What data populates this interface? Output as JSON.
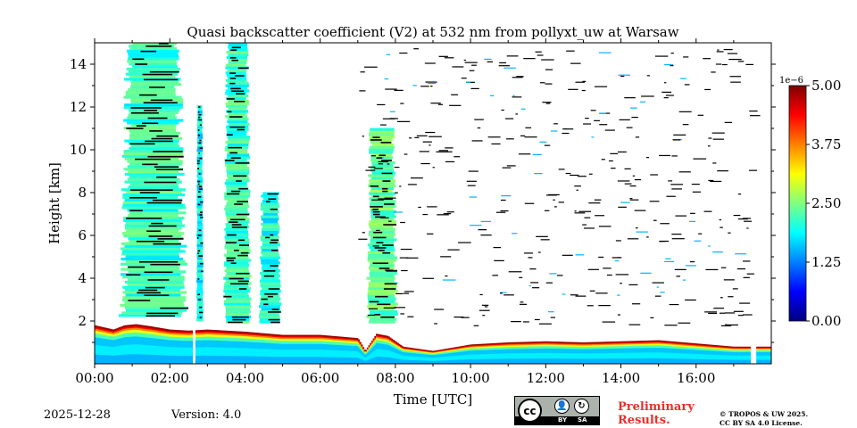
{
  "chart_data": {
    "type": "heatmap",
    "title": "Quasi backscatter coefficient (V2) at 532 nm from pollyxt_uw at Warsaw",
    "xlabel": "Time [UTC]",
    "ylabel": "Height [km]",
    "xlim": [
      0,
      18
    ],
    "ylim": [
      0,
      15
    ],
    "x_ticks": [
      0,
      2,
      4,
      6,
      8,
      10,
      12,
      14,
      16
    ],
    "x_tick_labels": [
      "00:00",
      "02:00",
      "04:00",
      "06:00",
      "08:00",
      "10:00",
      "12:00",
      "14:00",
      "16:00"
    ],
    "y_ticks": [
      2,
      4,
      6,
      8,
      10,
      12,
      14
    ],
    "y_tick_labels": [
      "2",
      "4",
      "6",
      "8",
      "10",
      "12",
      "14"
    ],
    "colorbar": {
      "min": 0.0,
      "max": 5.0,
      "scale_label": "1e−6",
      "ticks": [
        0.0,
        1.25,
        2.5,
        3.75,
        5.0
      ],
      "tick_labels": [
        "0.00",
        "1.25",
        "2.50",
        "3.75",
        "5.00"
      ],
      "colormap": "jet"
    },
    "boundary_layer_top_km": {
      "times_h": [
        0,
        0.5,
        0.8,
        1.1,
        1.5,
        2.0,
        2.5,
        3.0,
        4.0,
        5.0,
        6.0,
        7.0,
        7.2,
        7.5,
        7.8,
        8.2,
        9.0,
        10.0,
        11.0,
        12.0,
        13.0,
        14.0,
        15.0,
        16.0,
        17.0,
        18.0
      ],
      "heights_km": [
        1.8,
        1.6,
        1.8,
        1.85,
        1.75,
        1.6,
        1.55,
        1.6,
        1.5,
        1.35,
        1.35,
        1.2,
        0.6,
        1.4,
        1.3,
        0.8,
        0.6,
        0.9,
        1.0,
        1.05,
        1.0,
        1.05,
        1.1,
        0.95,
        0.8,
        0.8
      ]
    },
    "data_gaps_h": [
      [
        2.62,
        2.68
      ],
      [
        17.45,
        17.58
      ]
    ],
    "elevated_aerosol_columns": [
      {
        "from_h": 0.6,
        "to_h": 2.55,
        "bottom_km": 2.2,
        "top_km": 15.0,
        "level": 0.45
      },
      {
        "from_h": 2.7,
        "to_h": 2.9,
        "bottom_km": 2.0,
        "top_km": 12.0,
        "level": 0.4
      },
      {
        "from_h": 3.4,
        "to_h": 4.2,
        "bottom_km": 1.9,
        "top_km": 15.0,
        "level": 0.45
      },
      {
        "from_h": 4.35,
        "to_h": 5.0,
        "bottom_km": 1.9,
        "top_km": 8.0,
        "level": 0.42
      },
      {
        "from_h": 7.2,
        "to_h": 8.1,
        "bottom_km": 1.9,
        "top_km": 11.0,
        "level": 0.5
      }
    ],
    "footer": {
      "date": "2025-12-28",
      "version": "Version: 4.0",
      "license_badge": {
        "cc": "cc",
        "by": "BY",
        "sa": "SA"
      },
      "preliminary": [
        "Preliminary",
        "Results."
      ],
      "copyright": [
        "© TROPOS & UW 2025.",
        "CC BY SA 4.0 License."
      ]
    }
  }
}
